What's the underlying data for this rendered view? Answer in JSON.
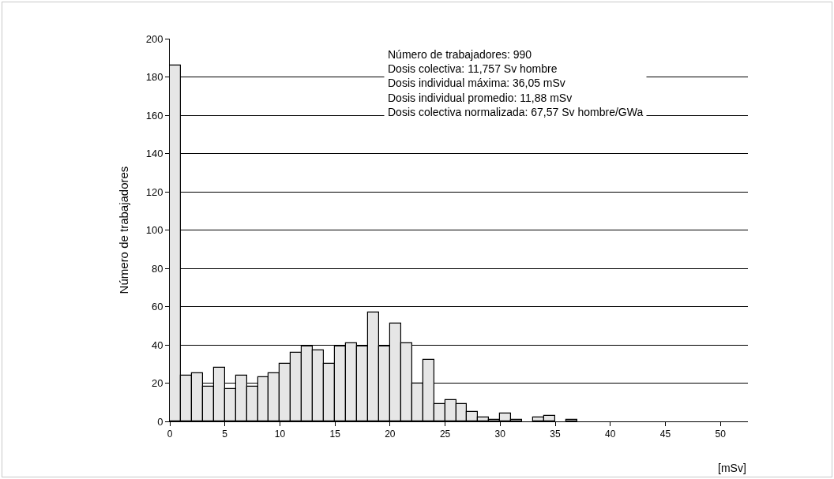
{
  "chart_data": {
    "type": "histogram",
    "ylabel": "Número de trabajadores",
    "xlabel": "[mSv]",
    "annotations": [
      "Número de trabajadores: 990",
      "Dosis colectiva: 11,757 Sv hombre",
      "Dosis individual máxima: 36,05 mSv",
      "Dosis individual promedio: 11,88 mSv",
      "Dosis colectiva normalizada: 67,57 Sv hombre/GWa"
    ],
    "bins": [
      0,
      1,
      2,
      3,
      4,
      5,
      6,
      7,
      8,
      9,
      10,
      11,
      12,
      13,
      14,
      15,
      16,
      17,
      18,
      19,
      20,
      21,
      22,
      23,
      24,
      25,
      26,
      27,
      28,
      29,
      30,
      31,
      32,
      33,
      34,
      35,
      36,
      37,
      38,
      39,
      40,
      41,
      42,
      43,
      44,
      45,
      46,
      47,
      48,
      49,
      50
    ],
    "values": [
      186,
      24,
      25,
      18,
      28,
      17,
      24,
      18,
      23,
      25,
      30,
      36,
      39,
      37,
      30,
      39,
      41,
      39,
      57,
      39,
      51,
      41,
      20,
      32,
      9,
      11,
      9,
      5,
      2,
      1,
      4,
      1,
      0,
      2,
      3,
      0,
      1,
      0,
      0,
      0,
      0,
      0,
      0,
      0,
      0,
      0,
      0,
      0,
      0,
      0
    ],
    "color": "#e6e6e6",
    "xlim": [
      0,
      52.5
    ],
    "xticks": [
      0,
      5,
      10,
      15,
      20,
      25,
      30,
      35,
      40,
      45,
      50
    ],
    "ylim": [
      0,
      200
    ],
    "yticks": [
      0,
      20,
      40,
      60,
      80,
      100,
      120,
      140,
      160,
      180,
      200
    ],
    "grid": "y"
  }
}
